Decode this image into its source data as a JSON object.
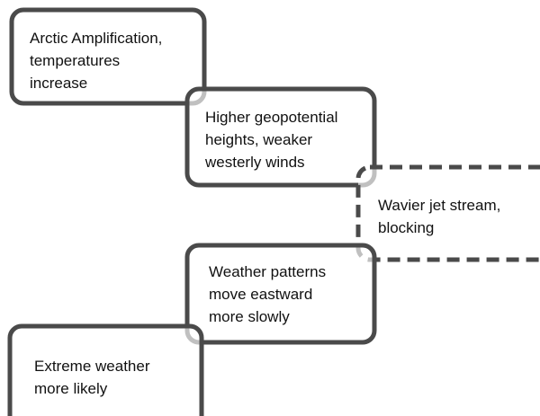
{
  "nodes": [
    {
      "lines": [
        "Arctic Amplification,",
        "temperatures",
        "increase"
      ]
    },
    {
      "lines": [
        "Higher geopotential",
        "heights, weaker",
        "westerly winds"
      ]
    },
    {
      "lines": [
        "Wavier jet stream,",
        "blocking"
      ]
    },
    {
      "lines": [
        "Weather patterns",
        "move eastward",
        "more slowly"
      ]
    },
    {
      "lines": [
        "Extreme weather",
        "more likely"
      ]
    }
  ]
}
